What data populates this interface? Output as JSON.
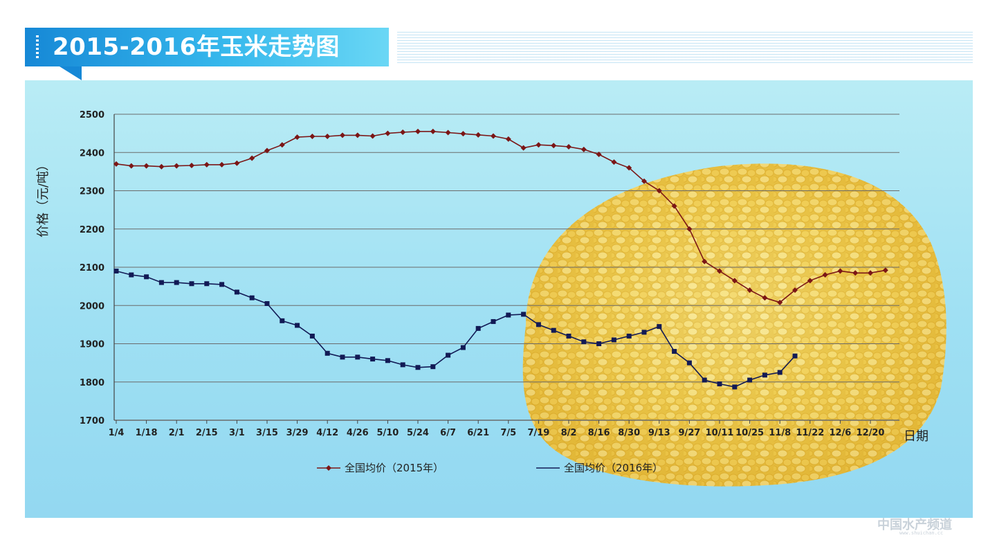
{
  "header": {
    "title": "2015-2016年玉米走势图"
  },
  "colors": {
    "series_2015": "#7b1616",
    "series_2016": "#121a55",
    "grid": "#6b6b6b",
    "panel": "#a8e3f3",
    "banner": "#1f8fd8"
  },
  "watermark": {
    "text": "中国水产频道",
    "sub": "www.shuichan.cc"
  },
  "chart_data": {
    "type": "line",
    "ylabel": "价格（元/吨）",
    "xlabel": "日期",
    "ylim": [
      1700,
      2500
    ],
    "yticks": [
      1700,
      1800,
      1900,
      2000,
      2100,
      2200,
      2300,
      2400,
      2500
    ],
    "x_tick_labels": [
      "1/4",
      "1/18",
      "2/1",
      "2/15",
      "3/1",
      "3/15",
      "3/29",
      "4/12",
      "4/26",
      "5/10",
      "5/24",
      "6/7",
      "6/21",
      "7/5",
      "7/19",
      "8/2",
      "8/16",
      "8/30",
      "9/13",
      "9/27",
      "10/11",
      "10/25",
      "11/8",
      "11/22",
      "12/6",
      "12/20"
    ],
    "grid": true,
    "legend_position": "bottom",
    "series": [
      {
        "name": "全国均价（2015年）",
        "color": "#7b1616",
        "marker": "diamond",
        "x": [
          "1/4",
          "1/11",
          "1/18",
          "1/25",
          "2/1",
          "2/8",
          "2/15",
          "2/22",
          "3/1",
          "3/8",
          "3/15",
          "3/22",
          "3/29",
          "4/5",
          "4/12",
          "4/19",
          "4/26",
          "5/3",
          "5/10",
          "5/17",
          "5/24",
          "5/31",
          "6/7",
          "6/14",
          "6/21",
          "6/28",
          "7/5",
          "7/12",
          "7/19",
          "7/26",
          "8/2",
          "8/9",
          "8/16",
          "8/23",
          "8/30",
          "9/6",
          "9/13",
          "9/20",
          "9/27",
          "10/4",
          "10/11",
          "10/18",
          "10/25",
          "11/1",
          "11/8",
          "11/15",
          "11/22",
          "11/29",
          "12/6",
          "12/13",
          "12/20",
          "12/27"
        ],
        "values": [
          2370,
          2365,
          2365,
          2363,
          2365,
          2366,
          2368,
          2368,
          2372,
          2385,
          2405,
          2420,
          2440,
          2442,
          2442,
          2445,
          2445,
          2443,
          2450,
          2453,
          2455,
          2455,
          2452,
          2449,
          2446,
          2443,
          2435,
          2412,
          2420,
          2418,
          2415,
          2408,
          2395,
          2375,
          2360,
          2325,
          2300,
          2260,
          2200,
          2115,
          2090,
          2065,
          2040,
          2020,
          2008,
          2040,
          2065,
          2080,
          2090,
          2085,
          2085,
          2092
        ]
      },
      {
        "name": "全国均价（2016年）",
        "color": "#121a55",
        "marker": "square",
        "x": [
          "1/4",
          "1/11",
          "1/18",
          "1/25",
          "2/1",
          "2/8",
          "2/15",
          "2/22",
          "3/1",
          "3/8",
          "3/15",
          "3/22",
          "3/29",
          "4/5",
          "4/12",
          "4/19",
          "4/26",
          "5/3",
          "5/10",
          "5/17",
          "5/24",
          "5/31",
          "6/7",
          "6/14",
          "6/21",
          "6/28",
          "7/5",
          "7/12",
          "7/19",
          "7/26",
          "8/2",
          "8/9",
          "8/16",
          "8/23",
          "8/30",
          "9/6",
          "9/13",
          "9/20",
          "9/27",
          "10/4",
          "10/11",
          "10/18",
          "10/25",
          "11/1",
          "11/8",
          "11/15"
        ],
        "values": [
          2090,
          2080,
          2075,
          2060,
          2060,
          2057,
          2057,
          2055,
          2035,
          2020,
          2005,
          1960,
          1948,
          1920,
          1875,
          1865,
          1865,
          1860,
          1856,
          1845,
          1838,
          1840,
          1870,
          1890,
          1940,
          1958,
          1975,
          1977,
          1950,
          1935,
          1920,
          1905,
          1900,
          1910,
          1920,
          1930,
          1945,
          1880,
          1850,
          1805,
          1795,
          1787,
          1805,
          1818,
          1825,
          1868
        ]
      }
    ]
  }
}
